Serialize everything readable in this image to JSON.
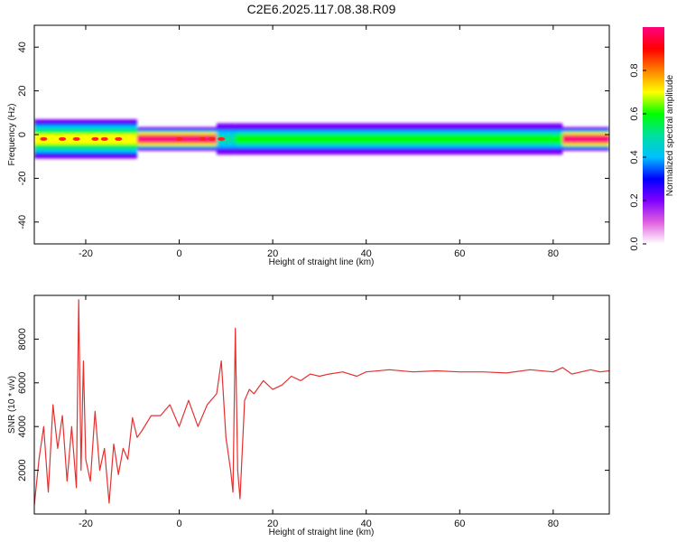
{
  "chart_data": [
    {
      "type": "heatmap",
      "title": "C2E6.2025.117.08.38.R09",
      "xlabel": "Height of straight line (km)",
      "ylabel": "Frequency (Hz)",
      "xlim": [
        -31,
        92
      ],
      "ylim": [
        -50,
        50
      ],
      "xticks": [
        -20,
        0,
        20,
        40,
        60,
        80
      ],
      "yticks": [
        40,
        20,
        0,
        -20,
        -40
      ],
      "colorbar": {
        "label": "Normalized spectral amplitude",
        "range": [
          0,
          1
        ],
        "ticks": [
          "0.0",
          "0.2",
          "0.4",
          "0.6",
          "0.8"
        ],
        "tick_values": [
          0,
          0.2,
          0.4,
          0.6,
          0.8
        ],
        "colormap": [
          "#ffffff",
          "#e060e0",
          "#8000ff",
          "#0000ff",
          "#00c0ff",
          "#00e0a0",
          "#00ff00",
          "#ffff00",
          "#ff8000",
          "#ff0000",
          "#ff0080"
        ]
      },
      "band": {
        "center_freq_hz": -2,
        "segments": [
          {
            "x": [
              -31,
              -9
            ],
            "halfwidth_hz": 5,
            "peak": 0.65
          },
          {
            "x": [
              -9,
              8
            ],
            "halfwidth_hz": 3,
            "peak": 1.0
          },
          {
            "x": [
              8,
              12
            ],
            "halfwidth_hz": 4,
            "peak": 0.5
          },
          {
            "x": [
              12,
              82
            ],
            "halfwidth_hz": 4,
            "peak": 0.55
          },
          {
            "x": [
              82,
              92
            ],
            "halfwidth_hz": 3,
            "peak": 1.0
          }
        ],
        "hot_spots_x": [
          -29,
          -25,
          -22,
          -18,
          -16,
          -13,
          0,
          5,
          7,
          9
        ]
      }
    },
    {
      "type": "line",
      "title": "",
      "xlabel": "Height of straight line (km)",
      "ylabel": "SNR (10 * v/v)",
      "xlim": [
        -31,
        92
      ],
      "ylim": [
        0,
        10000
      ],
      "xticks": [
        -20,
        0,
        20,
        40,
        60,
        80
      ],
      "yticks": [
        2000,
        4000,
        6000,
        8000
      ],
      "series": [
        {
          "color": "#e53030",
          "x": [
            -31,
            -30,
            -29,
            -28,
            -27,
            -26,
            -25,
            -24,
            -23,
            -22,
            -21.5,
            -21,
            -20.5,
            -20,
            -19,
            -18,
            -17,
            -16,
            -15,
            -14,
            -13,
            -12,
            -11,
            -10,
            -9,
            -8,
            -6,
            -4,
            -2,
            0,
            2,
            4,
            6,
            8,
            9,
            10,
            11,
            11.5,
            12,
            12.5,
            13,
            14,
            15,
            16,
            18,
            20,
            22,
            24,
            26,
            28,
            30,
            32,
            35,
            38,
            40,
            45,
            50,
            55,
            60,
            65,
            70,
            75,
            80,
            82,
            84,
            86,
            88,
            90,
            92
          ],
          "y": [
            400,
            2500,
            4000,
            1000,
            5000,
            3000,
            4500,
            1500,
            4000,
            1200,
            9800,
            2000,
            7000,
            2500,
            1500,
            4700,
            2000,
            3000,
            500,
            3200,
            1800,
            3000,
            2500,
            4400,
            3500,
            3800,
            4500,
            4500,
            5000,
            4000,
            5200,
            4000,
            5000,
            5500,
            7000,
            3500,
            2000,
            1000,
            8500,
            2000,
            700,
            5200,
            5700,
            5500,
            6100,
            5700,
            5900,
            6300,
            6100,
            6400,
            6300,
            6400,
            6500,
            6300,
            6500,
            6600,
            6500,
            6550,
            6500,
            6500,
            6450,
            6600,
            6500,
            6700,
            6400,
            6500,
            6600,
            6500,
            6550
          ]
        }
      ]
    }
  ]
}
